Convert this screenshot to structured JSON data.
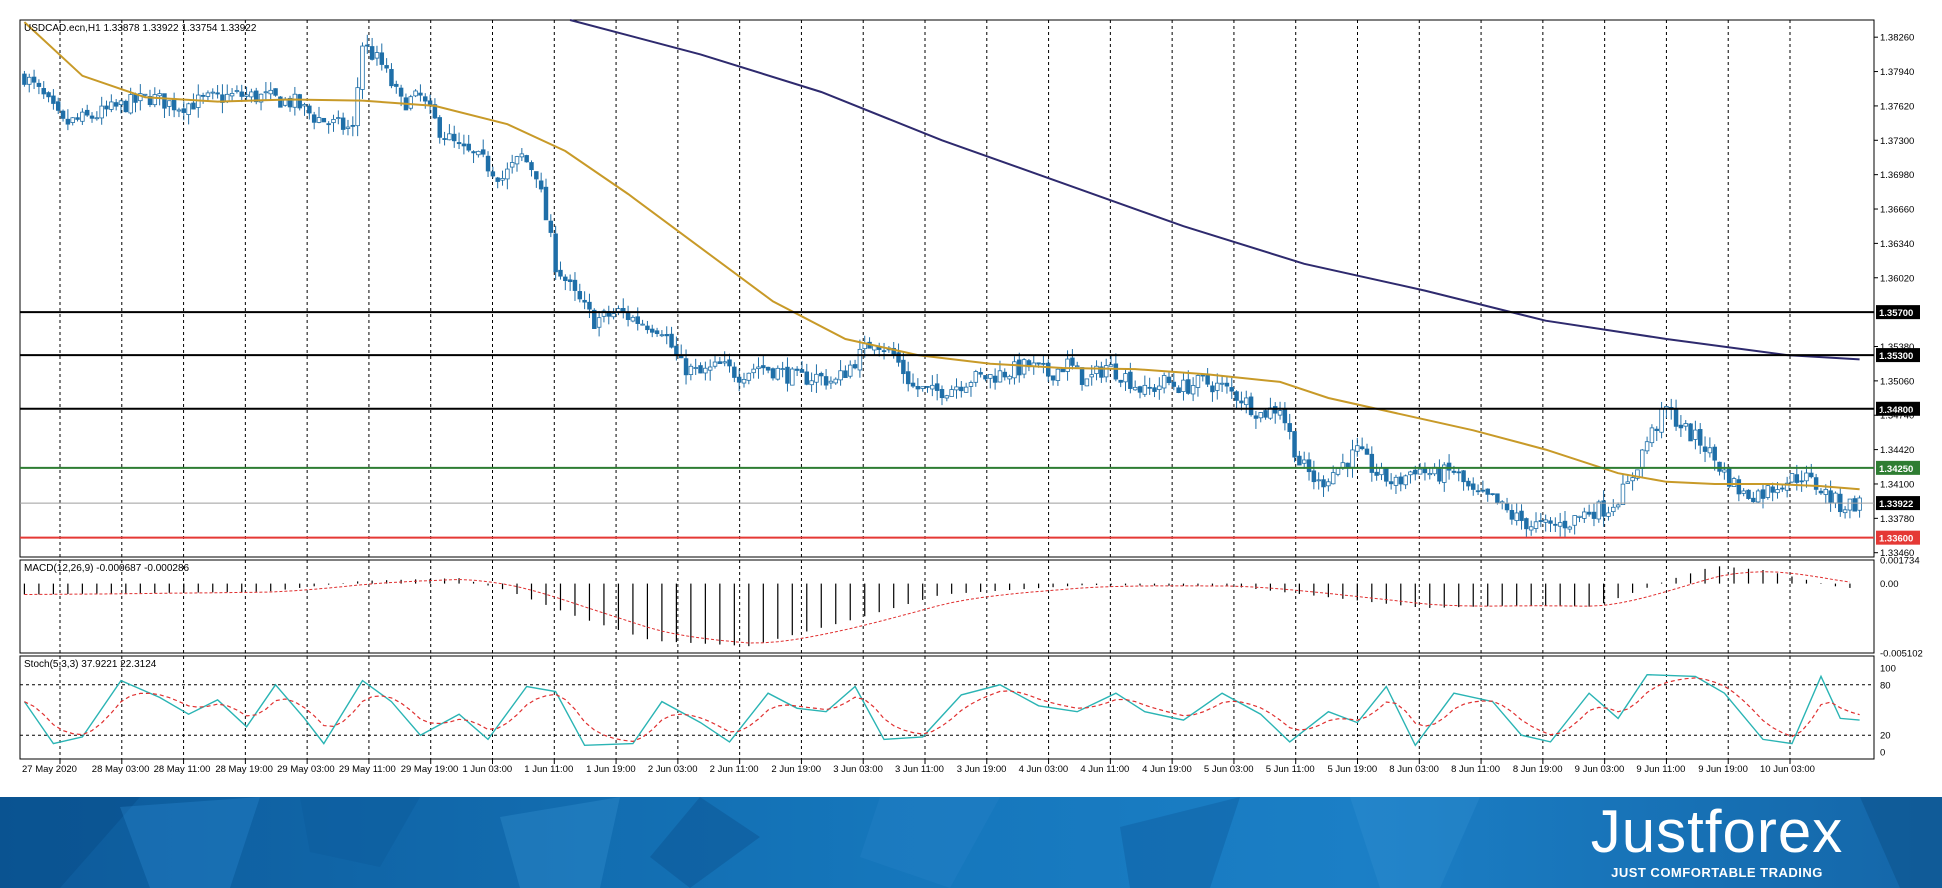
{
  "colors": {
    "bull": "#ffffff",
    "bear": "#1f6fa8",
    "wick": "#1f6fa8",
    "ma_fast": "#c89a28",
    "ma_slow": "#2e2a6e",
    "macd_hist": "#000000",
    "macd_signal": "#e03030",
    "stoch_main": "#2ab4b4",
    "stoch_signal": "#e03030",
    "grid": "#000000",
    "line_black": "#000000",
    "line_green": "#2e7d32",
    "line_red": "#e53935",
    "line_current": "#9e9e9e",
    "banner": "#1576bb"
  },
  "main_panel": {
    "header": "USDCAD.ecn,H1  1.33878 1.33922 1.33754 1.33922",
    "price_ticks": [
      "1.38260",
      "1.37940",
      "1.37620",
      "1.37300",
      "1.36980",
      "1.36660",
      "1.36340",
      "1.36020",
      "1.35380",
      "1.35060",
      "1.34740",
      "1.34420",
      "1.34100",
      "1.33780",
      "1.33460"
    ],
    "levels": [
      {
        "label": "1.35700",
        "value": 1.357,
        "kind": "black"
      },
      {
        "label": "1.35300",
        "value": 1.353,
        "kind": "black"
      },
      {
        "label": "1.34800",
        "value": 1.348,
        "kind": "black"
      },
      {
        "label": "1.34250",
        "value": 1.3425,
        "kind": "green"
      },
      {
        "label": "1.33922",
        "value": 1.33922,
        "kind": "current"
      },
      {
        "label": "1.33600",
        "value": 1.336,
        "kind": "red"
      }
    ]
  },
  "macd_panel": {
    "header": "MACD(12,26,9) -0.000687 -0.000286",
    "ticks": [
      "0.001734",
      "0.00",
      "-0.005102"
    ]
  },
  "stoch_panel": {
    "header": "Stoch(5,3,3) 37.9221 22.3124",
    "ticks": [
      "100",
      "80",
      "20",
      "0"
    ]
  },
  "time_axis": [
    "27 May 2020",
    "28 May 03:00",
    "28 May 11:00",
    "28 May 19:00",
    "29 May 03:00",
    "29 May 11:00",
    "29 May 19:00",
    "1 Jun 03:00",
    "1 Jun 11:00",
    "1 Jun 19:00",
    "2 Jun 03:00",
    "2 Jun 11:00",
    "2 Jun 19:00",
    "3 Jun 03:00",
    "3 Jun 11:00",
    "3 Jun 19:00",
    "4 Jun 03:00",
    "4 Jun 11:00",
    "4 Jun 19:00",
    "5 Jun 03:00",
    "5 Jun 11:00",
    "5 Jun 19:00",
    "8 Jun 03:00",
    "8 Jun 11:00",
    "8 Jun 19:00",
    "9 Jun 03:00",
    "9 Jun 11:00",
    "9 Jun 19:00",
    "10 Jun 03:00"
  ],
  "banner": {
    "brand": "Justforex",
    "tagline": "JUST COMFORTABLE TRADING"
  },
  "chart_data": {
    "type": "candlestick",
    "symbol": "USDCAD.ecn",
    "timeframe": "H1",
    "ylim": [
      1.3342,
      1.3842
    ],
    "close_path": [
      [
        0,
        1.379
      ],
      [
        4,
        1.377
      ],
      [
        8,
        1.3745
      ],
      [
        14,
        1.3752
      ],
      [
        20,
        1.3762
      ],
      [
        26,
        1.377
      ],
      [
        32,
        1.3762
      ],
      [
        38,
        1.3768
      ],
      [
        44,
        1.3772
      ],
      [
        50,
        1.377
      ],
      [
        56,
        1.3765
      ],
      [
        60,
        1.3752
      ],
      [
        64,
        1.3745
      ],
      [
        68,
        1.374
      ],
      [
        70,
        1.382
      ],
      [
        74,
        1.38
      ],
      [
        78,
        1.3765
      ],
      [
        82,
        1.377
      ],
      [
        86,
        1.374
      ],
      [
        90,
        1.3722
      ],
      [
        95,
        1.371
      ],
      [
        99,
        1.3695
      ],
      [
        103,
        1.3715
      ],
      [
        106,
        1.37
      ],
      [
        110,
        1.3615
      ],
      [
        114,
        1.3585
      ],
      [
        118,
        1.3562
      ],
      [
        123,
        1.357
      ],
      [
        127,
        1.3562
      ],
      [
        132,
        1.3555
      ],
      [
        136,
        1.352
      ],
      [
        140,
        1.3512
      ],
      [
        144,
        1.352
      ],
      [
        148,
        1.3512
      ],
      [
        152,
        1.352
      ],
      [
        156,
        1.3515
      ],
      [
        160,
        1.3508
      ],
      [
        164,
        1.351
      ],
      [
        168,
        1.3505
      ],
      [
        172,
        1.3525
      ],
      [
        176,
        1.3545
      ],
      [
        180,
        1.353
      ],
      [
        184,
        1.35
      ],
      [
        188,
        1.3495
      ],
      [
        192,
        1.35
      ],
      [
        196,
        1.3508
      ],
      [
        200,
        1.351
      ],
      [
        204,
        1.3515
      ],
      [
        208,
        1.352
      ],
      [
        212,
        1.3512
      ],
      [
        216,
        1.3522
      ],
      [
        220,
        1.3505
      ],
      [
        224,
        1.352
      ],
      [
        228,
        1.351
      ],
      [
        232,
        1.3495
      ],
      [
        236,
        1.3505
      ],
      [
        240,
        1.35
      ],
      [
        244,
        1.3505
      ],
      [
        248,
        1.35
      ],
      [
        252,
        1.349
      ],
      [
        256,
        1.3475
      ],
      [
        260,
        1.3482
      ],
      [
        264,
        1.343
      ],
      [
        268,
        1.341
      ],
      [
        272,
        1.3425
      ],
      [
        276,
        1.344
      ],
      [
        280,
        1.342
      ],
      [
        284,
        1.341
      ],
      [
        288,
        1.3425
      ],
      [
        292,
        1.3418
      ],
      [
        296,
        1.3422
      ],
      [
        300,
        1.34
      ],
      [
        304,
        1.3395
      ],
      [
        308,
        1.338
      ],
      [
        312,
        1.3372
      ],
      [
        316,
        1.337
      ],
      [
        320,
        1.3375
      ],
      [
        324,
        1.3385
      ],
      [
        328,
        1.3388
      ],
      [
        332,
        1.3408
      ],
      [
        336,
        1.345
      ],
      [
        340,
        1.348
      ],
      [
        344,
        1.346
      ],
      [
        348,
        1.3445
      ],
      [
        352,
        1.342
      ],
      [
        356,
        1.34
      ],
      [
        360,
        1.3402
      ],
      [
        364,
        1.3412
      ],
      [
        368,
        1.3418
      ],
      [
        372,
        1.3405
      ],
      [
        376,
        1.339
      ],
      [
        380,
        1.3392
      ]
    ],
    "n_bars": 381,
    "ma_fast": [
      [
        0,
        1.384
      ],
      [
        12,
        1.379
      ],
      [
        25,
        1.377
      ],
      [
        40,
        1.3766
      ],
      [
        55,
        1.3768
      ],
      [
        70,
        1.3767
      ],
      [
        85,
        1.3762
      ],
      [
        100,
        1.3745
      ],
      [
        112,
        1.372
      ],
      [
        125,
        1.368
      ],
      [
        140,
        1.363
      ],
      [
        155,
        1.358
      ],
      [
        170,
        1.3545
      ],
      [
        185,
        1.353
      ],
      [
        200,
        1.3522
      ],
      [
        215,
        1.3518
      ],
      [
        230,
        1.3517
      ],
      [
        245,
        1.3512
      ],
      [
        260,
        1.3505
      ],
      [
        270,
        1.349
      ],
      [
        285,
        1.3475
      ],
      [
        300,
        1.346
      ],
      [
        315,
        1.3442
      ],
      [
        330,
        1.342
      ],
      [
        340,
        1.3412
      ],
      [
        350,
        1.341
      ],
      [
        362,
        1.341
      ],
      [
        372,
        1.3408
      ],
      [
        380,
        1.3405
      ]
    ],
    "ma_slow": [
      [
        113,
        1.3842
      ],
      [
        140,
        1.381
      ],
      [
        165,
        1.3775
      ],
      [
        190,
        1.373
      ],
      [
        215,
        1.369
      ],
      [
        240,
        1.365
      ],
      [
        265,
        1.3615
      ],
      [
        290,
        1.359
      ],
      [
        315,
        1.3562
      ],
      [
        340,
        1.3545
      ],
      [
        365,
        1.353
      ],
      [
        380,
        1.3526
      ]
    ],
    "macd_hist_path": [
      [
        0,
        -0.0008
      ],
      [
        50,
        -0.0006
      ],
      [
        70,
        0.0002
      ],
      [
        90,
        0.0004
      ],
      [
        100,
        -0.0005
      ],
      [
        115,
        -0.0025
      ],
      [
        130,
        -0.0042
      ],
      [
        150,
        -0.0046
      ],
      [
        170,
        -0.0028
      ],
      [
        190,
        -0.0008
      ],
      [
        220,
        -0.0001
      ],
      [
        250,
        -0.0002
      ],
      [
        270,
        -0.001
      ],
      [
        290,
        -0.0018
      ],
      [
        310,
        -0.0016
      ],
      [
        325,
        -0.0017
      ],
      [
        340,
        0.0002
      ],
      [
        350,
        0.0013
      ],
      [
        360,
        0.001
      ],
      [
        375,
        -0.0002
      ],
      [
        380,
        -0.0004
      ]
    ],
    "stoch_path": [
      [
        0,
        60
      ],
      [
        6,
        10
      ],
      [
        12,
        18
      ],
      [
        20,
        85
      ],
      [
        28,
        65
      ],
      [
        34,
        45
      ],
      [
        40,
        62
      ],
      [
        46,
        30
      ],
      [
        52,
        80
      ],
      [
        58,
        40
      ],
      [
        62,
        10
      ],
      [
        70,
        85
      ],
      [
        76,
        60
      ],
      [
        82,
        20
      ],
      [
        90,
        45
      ],
      [
        96,
        15
      ],
      [
        104,
        78
      ],
      [
        110,
        72
      ],
      [
        116,
        8
      ],
      [
        126,
        10
      ],
      [
        132,
        60
      ],
      [
        140,
        35
      ],
      [
        146,
        12
      ],
      [
        154,
        70
      ],
      [
        160,
        52
      ],
      [
        166,
        48
      ],
      [
        172,
        78
      ],
      [
        178,
        15
      ],
      [
        186,
        18
      ],
      [
        194,
        68
      ],
      [
        202,
        80
      ],
      [
        210,
        55
      ],
      [
        218,
        48
      ],
      [
        226,
        70
      ],
      [
        232,
        48
      ],
      [
        240,
        38
      ],
      [
        248,
        70
      ],
      [
        256,
        45
      ],
      [
        262,
        12
      ],
      [
        270,
        48
      ],
      [
        276,
        35
      ],
      [
        282,
        78
      ],
      [
        288,
        8
      ],
      [
        296,
        70
      ],
      [
        304,
        60
      ],
      [
        310,
        20
      ],
      [
        316,
        12
      ],
      [
        324,
        70
      ],
      [
        330,
        40
      ],
      [
        336,
        92
      ],
      [
        346,
        90
      ],
      [
        352,
        70
      ],
      [
        360,
        15
      ],
      [
        366,
        10
      ],
      [
        372,
        90
      ],
      [
        376,
        40
      ],
      [
        380,
        38
      ]
    ],
    "series": [
      {
        "name": "USDCAD.ecn,H1",
        "kind": "candles"
      },
      {
        "name": "MACD(12,26,9)",
        "values_last": [
          -0.000687,
          -0.000286
        ]
      },
      {
        "name": "Stoch(5,3,3)",
        "values_last": [
          37.9221,
          22.3124
        ]
      }
    ]
  }
}
